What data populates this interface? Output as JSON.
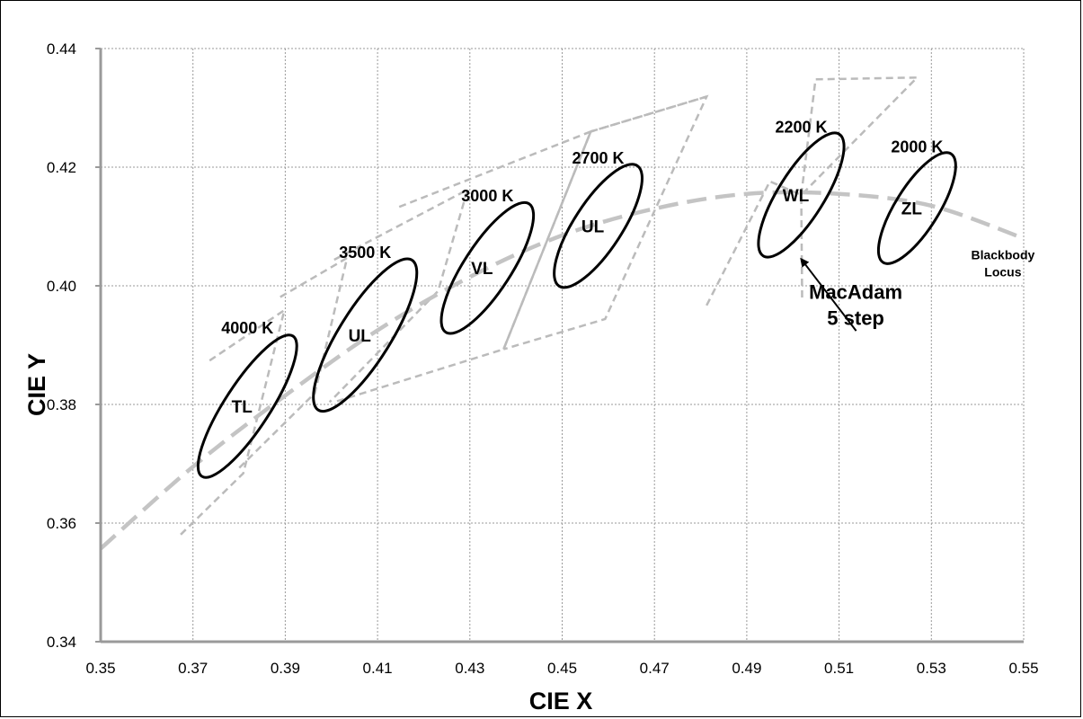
{
  "chart_data": {
    "type": "scatter",
    "title": "",
    "xlabel": "CIE X",
    "ylabel": "CIE Y",
    "xlim": [
      0.35,
      0.55
    ],
    "ylim": [
      0.34,
      0.44
    ],
    "xticks": [
      0.35,
      0.37,
      0.39,
      0.41,
      0.43,
      0.45,
      0.47,
      0.49,
      0.51,
      0.53,
      0.55
    ],
    "yticks": [
      0.34,
      0.36,
      0.38,
      0.4,
      0.42,
      0.44
    ],
    "xtick_labels": [
      "0.35",
      "0.37",
      "0.39",
      "0.41",
      "0.43",
      "0.45",
      "0.47",
      "0.49",
      "0.51",
      "0.53",
      "0.55"
    ],
    "ytick_labels": [
      "0.34",
      "0.36",
      "0.38",
      "0.40",
      "0.42",
      "0.44"
    ],
    "grid": true,
    "colors": {
      "ellipse": "#000000",
      "quad": "#bbbbbb",
      "locus": "#c4c4c4",
      "axis": "#9a9a9a",
      "grid": "#9a9a9a"
    },
    "blackbody_locus": {
      "label_lines": [
        "Blackbody",
        "Locus"
      ],
      "label_anchor": [
        0.5455,
        0.4045
      ],
      "points": [
        [
          0.35,
          0.3557
        ],
        [
          0.37,
          0.3695
        ],
        [
          0.39,
          0.3815
        ],
        [
          0.41,
          0.3925
        ],
        [
          0.43,
          0.4015
        ],
        [
          0.45,
          0.4085
        ],
        [
          0.47,
          0.413
        ],
        [
          0.49,
          0.4155
        ],
        [
          0.51,
          0.4155
        ],
        [
          0.53,
          0.4135
        ],
        [
          0.55,
          0.408
        ]
      ]
    },
    "quadrangles": [
      {
        "points": [
          [
            0.3736,
            0.3874
          ],
          [
            0.3898,
            0.3959
          ],
          [
            0.3809,
            0.3684
          ],
          [
            0.367,
            0.3578
          ]
        ]
      },
      {
        "points": [
          [
            0.3889,
            0.3981
          ],
          [
            0.4034,
            0.4047
          ],
          [
            0.3964,
            0.3819
          ],
          [
            0.38,
            0.3693
          ]
        ]
      },
      {
        "points": [
          [
            0.4006,
            0.4044
          ],
          [
            0.4295,
            0.4162
          ],
          [
            0.4231,
            0.3991
          ],
          [
            0.3996,
            0.3804
          ]
        ]
      },
      {
        "points": [
          [
            0.4147,
            0.4133
          ],
          [
            0.4562,
            0.426
          ],
          [
            0.4373,
            0.3893
          ],
          [
            0.4006,
            0.3804
          ]
        ]
      },
      {
        "points": [
          [
            0.4562,
            0.426
          ],
          [
            0.4813,
            0.4319
          ],
          [
            0.4593,
            0.3944
          ],
          [
            0.4373,
            0.3893
          ]
        ]
      },
      {
        "points": [
          [
            0.4813,
            0.4319
          ],
          [
            0.4562,
            0.426
          ]
        ]
      },
      {
        "points": [
          [
            0.5018,
            0.4153
          ],
          [
            0.5049,
            0.4348
          ],
          [
            0.5269,
            0.4351
          ],
          [
            0.5018,
            0.4153
          ]
        ]
      },
      {
        "points": [
          [
            0.4813,
            0.3967
          ],
          [
            0.495,
            0.4176
          ],
          [
            0.5018,
            0.4153
          ],
          [
            0.502,
            0.3976
          ]
        ]
      }
    ],
    "solid_lines": [
      {
        "points": [
          [
            0.4373,
            0.3893
          ],
          [
            0.4562,
            0.426
          ]
        ]
      }
    ],
    "ellipses": [
      {
        "name": "TL",
        "cct": "4000 K",
        "center": [
          0.3818,
          0.3797
        ],
        "a": 0.0049,
        "b": 0.0141,
        "angle": 57
      },
      {
        "name": "UL",
        "cct": "3500 K",
        "center": [
          0.4073,
          0.3917
        ],
        "a": 0.0056,
        "b": 0.0149,
        "angle": 58
      },
      {
        "name": "VL",
        "cct": "3000 K",
        "center": [
          0.4338,
          0.403
        ],
        "a": 0.0051,
        "b": 0.0129,
        "angle": 57
      },
      {
        "name": "UL",
        "cct": "2700 K",
        "center": [
          0.4578,
          0.4101
        ],
        "a": 0.0052,
        "b": 0.0121,
        "angle": 57
      },
      {
        "name": "WL",
        "cct": "2200 K",
        "center": [
          0.5018,
          0.4153
        ],
        "a": 0.005,
        "b": 0.0121,
        "angle": 58
      },
      {
        "name": "ZL",
        "cct": "2000 K",
        "center": [
          0.5269,
          0.4131
        ],
        "a": 0.0047,
        "b": 0.0108,
        "angle": 58
      }
    ],
    "annotation": {
      "lines": [
        "MacAdam",
        "5 step"
      ],
      "text_anchor": [
        0.5136,
        0.3978
      ],
      "arrow_from": [
        0.5137,
        0.3924
      ],
      "arrow_to": [
        0.5018,
        0.4045
      ]
    }
  }
}
